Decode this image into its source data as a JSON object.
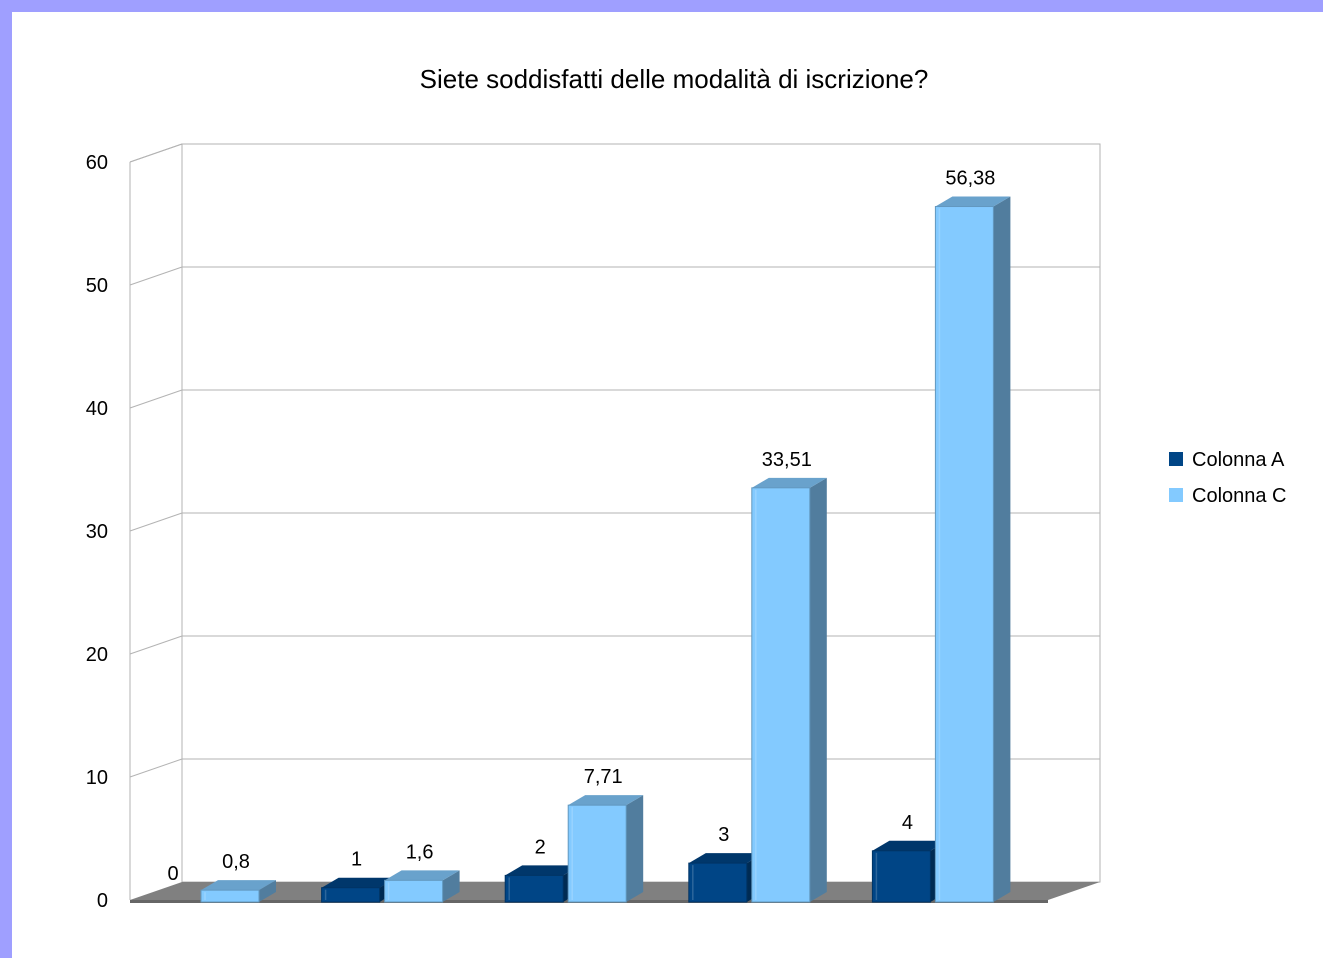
{
  "chart_data": {
    "type": "bar",
    "title": "Siete soddisfatti delle modalità di iscrizione?",
    "xlabel": "",
    "ylabel": "",
    "ylim": [
      0,
      60
    ],
    "yticks": [
      "0",
      "10",
      "20",
      "30",
      "40",
      "50",
      "60"
    ],
    "grid": true,
    "three_d": true,
    "legend_position": "right",
    "colors": {
      "Colonna A": "#004586",
      "Colonna C": "#83caff",
      "floor": "#808080",
      "grid": "#b3b3b3",
      "frame_background": "#9f9fff"
    },
    "categories": [
      "",
      "",
      "",
      "",
      ""
    ],
    "series": [
      {
        "name": "Colonna A",
        "values": [
          0,
          1,
          2,
          3,
          4
        ],
        "labels": [
          "0",
          "1",
          "2",
          "3",
          "4"
        ]
      },
      {
        "name": "Colonna C",
        "values": [
          0.8,
          1.6,
          7.71,
          33.51,
          56.38
        ],
        "labels": [
          "0,8",
          "1,6",
          "7,71",
          "33,51",
          "56,38"
        ]
      }
    ]
  }
}
